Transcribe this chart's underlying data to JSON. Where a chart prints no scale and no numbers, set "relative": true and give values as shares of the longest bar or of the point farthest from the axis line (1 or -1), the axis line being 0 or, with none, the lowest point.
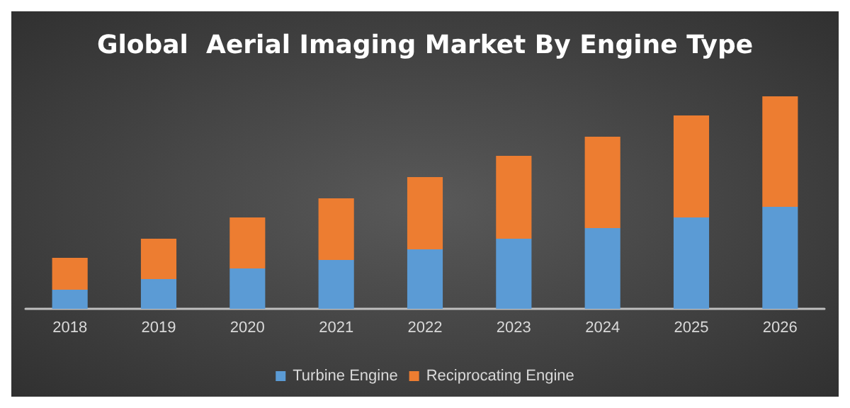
{
  "chart_data": {
    "type": "bar",
    "title": "Global  Aerial Imaging Market By Engine Type",
    "categories": [
      "2018",
      "2019",
      "2020",
      "2021",
      "2022",
      "2023",
      "2024",
      "2025",
      "2026"
    ],
    "stacked": true,
    "relative": true,
    "legend": "bottom",
    "series": [
      {
        "name": "Turbine Engine",
        "color": "#5b9bd5",
        "values": [
          0.09,
          0.14,
          0.19,
          0.23,
          0.28,
          0.33,
          0.38,
          0.43,
          0.48
        ]
      },
      {
        "name": "Reciprocating Engine",
        "color": "#ed7d31",
        "values": [
          0.15,
          0.19,
          0.24,
          0.29,
          0.34,
          0.39,
          0.43,
          0.48,
          0.52
        ]
      }
    ]
  }
}
